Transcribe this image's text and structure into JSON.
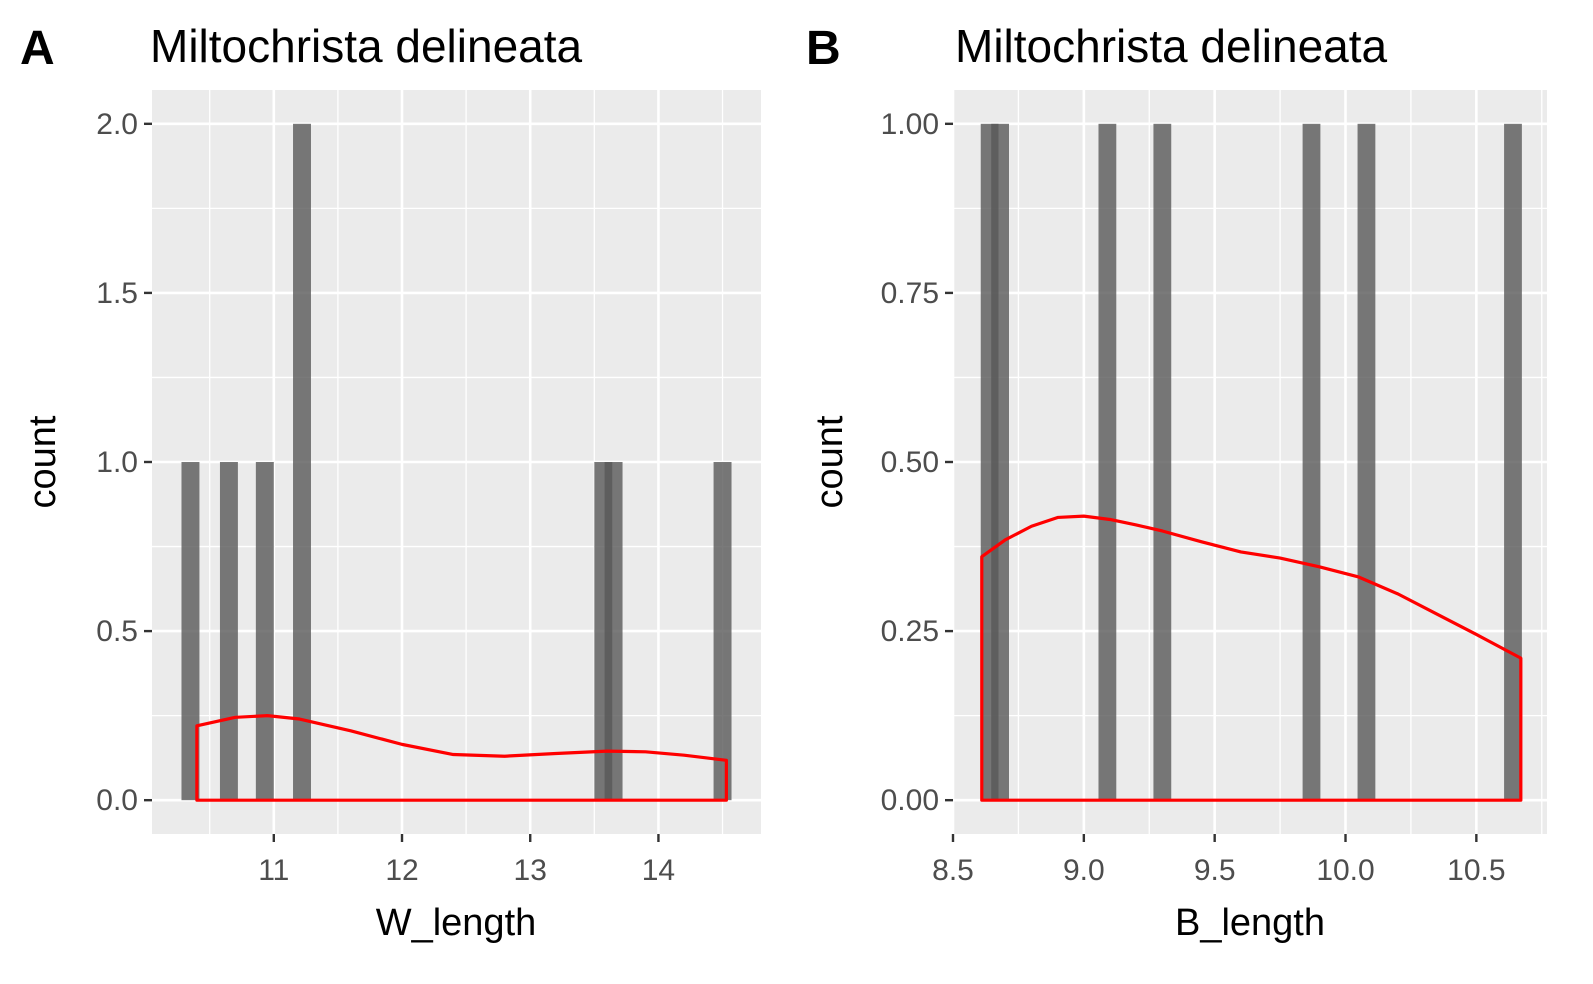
{
  "chart_data": [
    {
      "panel_tag": "A",
      "type": "bar",
      "title": "Miltochrista delineata",
      "xlabel": "W_length",
      "ylabel": "count",
      "xlim": [
        10.05,
        14.8
      ],
      "ylim": [
        -0.1,
        2.1
      ],
      "x_ticks": [
        11,
        12,
        13,
        14
      ],
      "x_tick_labels": [
        "11",
        "12",
        "13",
        "14"
      ],
      "y_ticks": [
        0,
        0.5,
        1,
        1.5,
        2
      ],
      "y_tick_labels": [
        "0.0",
        "0.5",
        "1.0",
        "1.5",
        "2.0"
      ],
      "bin_width": 0.14,
      "bars": [
        {
          "x": 10.35,
          "count": 1
        },
        {
          "x": 10.65,
          "count": 1
        },
        {
          "x": 10.93,
          "count": 1
        },
        {
          "x": 11.22,
          "count": 2
        },
        {
          "x": 13.57,
          "count": 1
        },
        {
          "x": 13.65,
          "count": 1
        },
        {
          "x": 14.5,
          "count": 1
        }
      ],
      "density": {
        "x": [
          10.4,
          10.7,
          10.95,
          11.2,
          11.6,
          12.0,
          12.4,
          12.8,
          13.2,
          13.6,
          13.9,
          14.2,
          14.53
        ],
        "y": [
          0.22,
          0.245,
          0.25,
          0.24,
          0.205,
          0.165,
          0.135,
          0.13,
          0.138,
          0.145,
          0.143,
          0.133,
          0.118
        ]
      },
      "colors": {
        "bar": "#595959",
        "density": "#ff0000",
        "panel": "#ebebeb",
        "grid": "#ffffff"
      }
    },
    {
      "panel_tag": "B",
      "type": "bar",
      "title": "Miltochrista delineata",
      "xlabel": "B_length",
      "ylabel": "count",
      "xlim": [
        8.5,
        10.77
      ],
      "ylim": [
        -0.05,
        1.05
      ],
      "x_ticks": [
        8.5,
        9.0,
        9.5,
        10.0,
        10.5
      ],
      "x_tick_labels": [
        "8.5",
        "9.0",
        "9.5",
        "10.0",
        "10.5"
      ],
      "y_ticks": [
        0,
        0.25,
        0.5,
        0.75,
        1
      ],
      "y_tick_labels": [
        "0.00",
        "0.25",
        "0.50",
        "0.75",
        "1.00"
      ],
      "bin_width": 0.068,
      "bars": [
        {
          "x": 8.64,
          "count": 1
        },
        {
          "x": 8.68,
          "count": 1
        },
        {
          "x": 9.09,
          "count": 1
        },
        {
          "x": 9.3,
          "count": 1
        },
        {
          "x": 9.87,
          "count": 1
        },
        {
          "x": 10.08,
          "count": 1
        },
        {
          "x": 10.64,
          "count": 1
        }
      ],
      "density": {
        "x": [
          8.61,
          8.7,
          8.8,
          8.9,
          9.0,
          9.1,
          9.2,
          9.3,
          9.45,
          9.6,
          9.75,
          9.9,
          10.05,
          10.2,
          10.35,
          10.5,
          10.67
        ],
        "y": [
          0.36,
          0.385,
          0.405,
          0.418,
          0.42,
          0.415,
          0.407,
          0.398,
          0.382,
          0.367,
          0.358,
          0.345,
          0.33,
          0.305,
          0.275,
          0.245,
          0.21
        ]
      },
      "colors": {
        "bar": "#595959",
        "density": "#ff0000",
        "panel": "#ebebeb",
        "grid": "#ffffff"
      }
    }
  ]
}
